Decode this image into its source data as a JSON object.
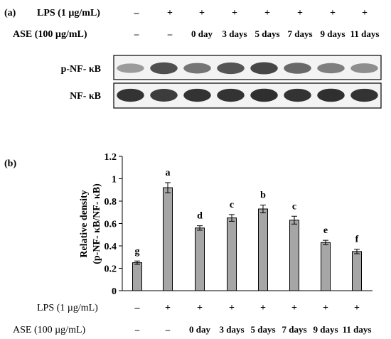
{
  "panel_a": {
    "label": "(a)",
    "row_lps_label": "LPS (1 µg/mL)",
    "row_ase_label": "ASE (100 µg/mL)",
    "lps_marks": [
      "–",
      "+",
      "+",
      "+",
      "+",
      "+",
      "+",
      "+"
    ],
    "ase_marks": [
      "–",
      "–",
      "0 day",
      "3 days",
      "5 days",
      "7 days",
      "9 days",
      "11 days"
    ],
    "blots": [
      {
        "label": "p-NF- κB",
        "intensity": [
          0.35,
          0.75,
          0.55,
          0.72,
          0.8,
          0.62,
          0.5,
          0.42
        ]
      },
      {
        "label": "NF- κB",
        "intensity": [
          0.9,
          0.85,
          0.9,
          0.9,
          0.92,
          0.9,
          0.92,
          0.9
        ]
      }
    ]
  },
  "panel_b": {
    "label": "(b)",
    "row_lps_label": "LPS (1 µg/mL)",
    "row_ase_label": "ASE (100 µg/mL)",
    "lps_marks": [
      "–",
      "+",
      "+",
      "+",
      "+",
      "+",
      "+",
      "+"
    ],
    "ase_marks": [
      "–",
      "–",
      "0 day",
      "3 days",
      "5 days",
      "7 days",
      "9 days",
      "11 days"
    ]
  },
  "chart_data": {
    "type": "bar",
    "ylabel": "Relative density (p-NF- κB/NF- κB)",
    "ylabel_lines": [
      "Relative density",
      "(p-NF- κB/NF- κB)"
    ],
    "ylim": [
      0,
      1.2
    ],
    "yticks": [
      "0",
      "0.2",
      "0.4",
      "0.6",
      "0.8",
      "1",
      "1.2"
    ],
    "yticks_values": [
      0,
      0.2,
      0.4,
      0.6,
      0.8,
      1.0,
      1.2
    ],
    "values": [
      0.25,
      0.92,
      0.56,
      0.65,
      0.73,
      0.63,
      0.43,
      0.35
    ],
    "errors": [
      0.015,
      0.045,
      0.02,
      0.03,
      0.035,
      0.035,
      0.02,
      0.02
    ],
    "letters": [
      "g",
      "a",
      "d",
      "c",
      "b",
      "c",
      "e",
      "f"
    ],
    "bar_color": "#a6a6a6",
    "grid": false
  }
}
